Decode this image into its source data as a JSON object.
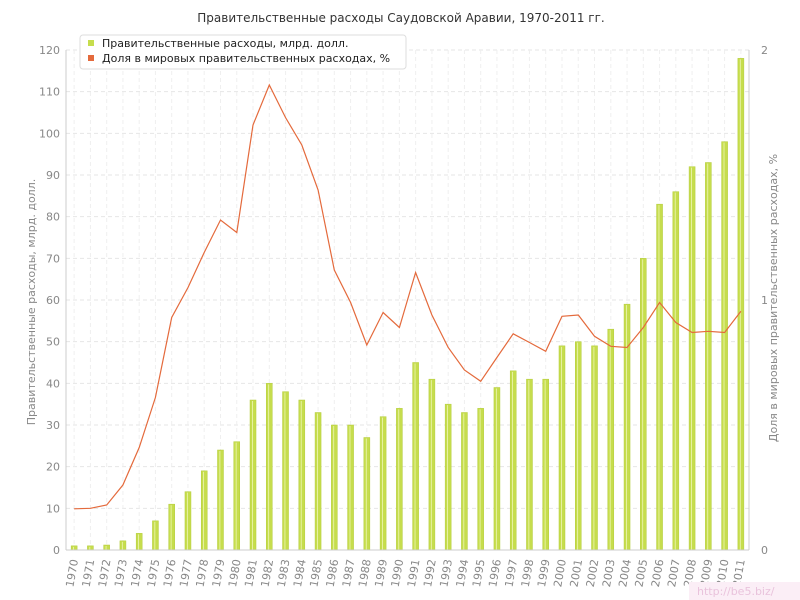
{
  "chart_data": {
    "type": "bar",
    "title": "Правительственные расходы Саудовской Аравии, 1970-2011 гг.",
    "ylabel": "Правительственные расходы, млрд. долл.",
    "y2label": "Доля в мировых правительственных расходах, %",
    "xlabel": "",
    "ylim": [
      0,
      120
    ],
    "y2lim": [
      0,
      2
    ],
    "yticks": [
      0,
      10,
      20,
      30,
      40,
      50,
      60,
      70,
      80,
      90,
      100,
      110,
      120
    ],
    "y2ticks": [
      0,
      1,
      2
    ],
    "grid": true,
    "legend_position": "top-left",
    "categories": [
      "1970",
      "1971",
      "1972",
      "1973",
      "1974",
      "1975",
      "1976",
      "1977",
      "1978",
      "1979",
      "1980",
      "1981",
      "1982",
      "1983",
      "1984",
      "1985",
      "1986",
      "1987",
      "1988",
      "1989",
      "1990",
      "1991",
      "1992",
      "1993",
      "1994",
      "1995",
      "1996",
      "1997",
      "1998",
      "1999",
      "2000",
      "2001",
      "2002",
      "2003",
      "2004",
      "2005",
      "2006",
      "2007",
      "2008",
      "2009",
      "2010",
      "2011"
    ],
    "series": [
      {
        "name": "Правительственные расходы, млрд. долл.",
        "type": "bar",
        "axis": "left",
        "color": "#c6dd4d",
        "values": [
          1,
          1,
          1.2,
          2.2,
          4,
          7,
          11,
          14,
          19,
          24,
          26,
          36,
          40,
          38,
          36,
          33,
          30,
          30,
          27,
          32,
          34,
          45,
          41,
          35,
          33,
          34,
          39,
          43,
          41,
          41,
          49,
          50,
          49,
          53,
          59,
          70,
          83,
          86,
          92,
          93,
          98,
          118
        ]
      },
      {
        "name": "Доля в мировых правительственных расходах, %",
        "type": "line",
        "axis": "right",
        "color": "#e46a3c",
        "values": [
          0.165,
          0.167,
          0.18,
          0.26,
          0.41,
          0.61,
          0.93,
          1.05,
          1.19,
          1.32,
          1.27,
          1.7,
          1.86,
          1.73,
          1.62,
          1.44,
          1.12,
          0.99,
          0.82,
          0.95,
          0.89,
          1.11,
          0.94,
          0.81,
          0.72,
          0.675,
          0.77,
          0.865,
          0.83,
          0.795,
          0.935,
          0.94,
          0.855,
          0.815,
          0.81,
          0.89,
          0.99,
          0.91,
          0.87,
          0.875,
          0.87,
          0.955
        ]
      }
    ]
  },
  "watermark": "http://be5.biz/"
}
